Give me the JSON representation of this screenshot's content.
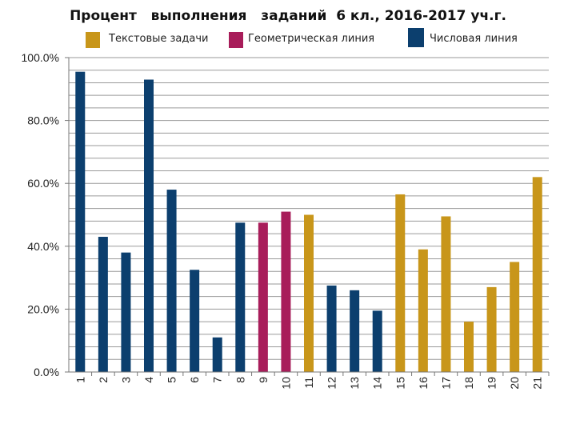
{
  "chart_data": {
    "type": "bar",
    "title": "Процент   выполнения   заданий  6 кл., 2016-2017 уч.г.",
    "categories": [
      "1",
      "2",
      "3",
      "4",
      "5",
      "6",
      "7",
      "8",
      "9",
      "10",
      "11",
      "12",
      "13",
      "14",
      "15",
      "16",
      "17",
      "18",
      "19",
      "20",
      "21"
    ],
    "values": [
      95.5,
      43,
      38,
      93,
      58,
      32.5,
      11,
      47.5,
      47.5,
      51,
      50,
      27.5,
      26,
      19.5,
      56.5,
      39,
      49.5,
      16,
      27,
      35,
      62
    ],
    "bar_series": [
      "Числовая линия",
      "Числовая линия",
      "Числовая линия",
      "Числовая линия",
      "Числовая линия",
      "Числовая линия",
      "Числовая линия",
      "Числовая линия",
      "Геометрическая линия",
      "Геометрическая линия",
      "Текстовые задачи",
      "Числовая линия",
      "Числовая линия",
      "Числовая линия",
      "Текстовые задачи",
      "Текстовые задачи",
      "Текстовые задачи",
      "Текстовые задачи",
      "Текстовые задачи",
      "Текстовые задачи",
      "Текстовые задачи"
    ],
    "series": [
      {
        "name": "Текстовые задачи",
        "color": "#c8961a"
      },
      {
        "name": "Геометрическая линия",
        "color": "#a81d5a"
      },
      {
        "name": "Числовая линия",
        "color": "#0c3f6e"
      }
    ],
    "yticks": [
      "0.0%",
      "20.0%",
      "40.0%",
      "60.0%",
      "80.0%",
      "100.0%"
    ],
    "ylim": [
      0,
      100
    ],
    "ytick_step": 20,
    "minor_grid_step": 4,
    "grid": true,
    "legend_position": "top"
  }
}
